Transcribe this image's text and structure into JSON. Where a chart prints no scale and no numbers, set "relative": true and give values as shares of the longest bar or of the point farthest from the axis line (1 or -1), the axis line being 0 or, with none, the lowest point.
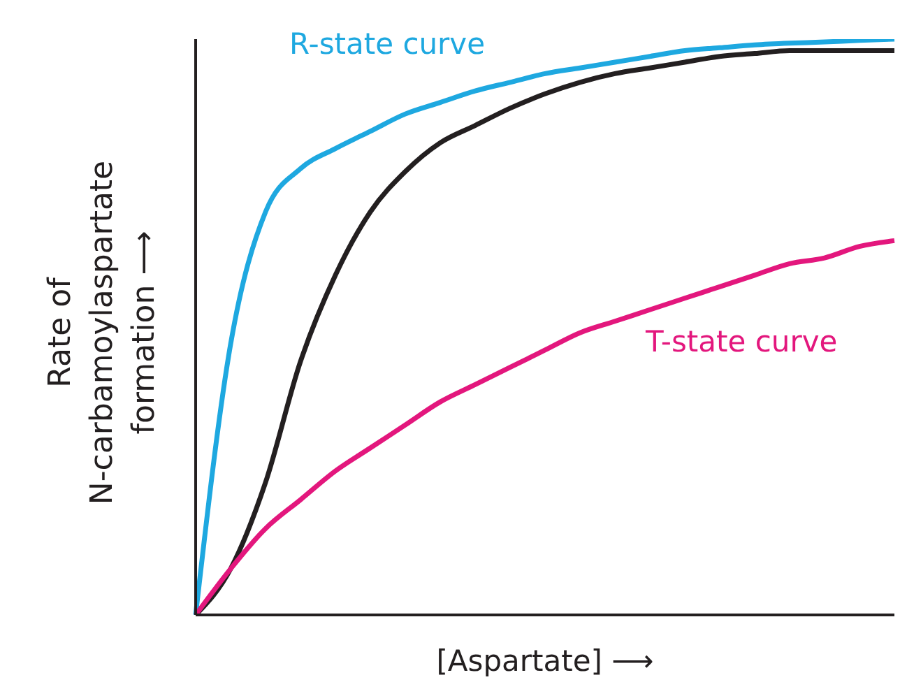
{
  "chart_data": {
    "type": "line",
    "relative": true,
    "xlabel": "[Aspartate] ⟶",
    "ylabel": "Rate of\nN-carbamoylaspartate\nformation ⟶",
    "categories": [
      null,
      null,
      null,
      null,
      null,
      null,
      null,
      null,
      null,
      null,
      null,
      null,
      null,
      null,
      null,
      null,
      null,
      null,
      null,
      null,
      null
    ],
    "series": [
      {
        "name": "R-state curve",
        "color": "#1ea8e0",
        "values": [
          0,
          0.47,
          0.7,
          0.775,
          0.81,
          0.84,
          0.87,
          0.89,
          0.91,
          0.925,
          0.94,
          0.95,
          0.96,
          0.97,
          0.98,
          0.985,
          0.99,
          0.993,
          0.995,
          0.998,
          1.0
        ]
      },
      {
        "color": "#231f20",
        "values": [
          0,
          0.08,
          0.23,
          0.44,
          0.59,
          0.7,
          0.77,
          0.82,
          0.85,
          0.88,
          0.905,
          0.925,
          0.94,
          0.95,
          0.96,
          0.97,
          0.975,
          0.98,
          0.98,
          0.98,
          0.98
        ]
      },
      {
        "name": "T-state curve",
        "color": "#e3177d",
        "values": [
          0,
          0.08,
          0.15,
          0.2,
          0.25,
          0.29,
          0.33,
          0.37,
          0.4,
          0.43,
          0.46,
          0.49,
          0.51,
          0.53,
          0.55,
          0.57,
          0.59,
          0.61,
          0.62,
          0.64,
          0.65
        ]
      }
    ],
    "grid": false,
    "legend": false,
    "marker": "none",
    "line_style": "solid"
  }
}
